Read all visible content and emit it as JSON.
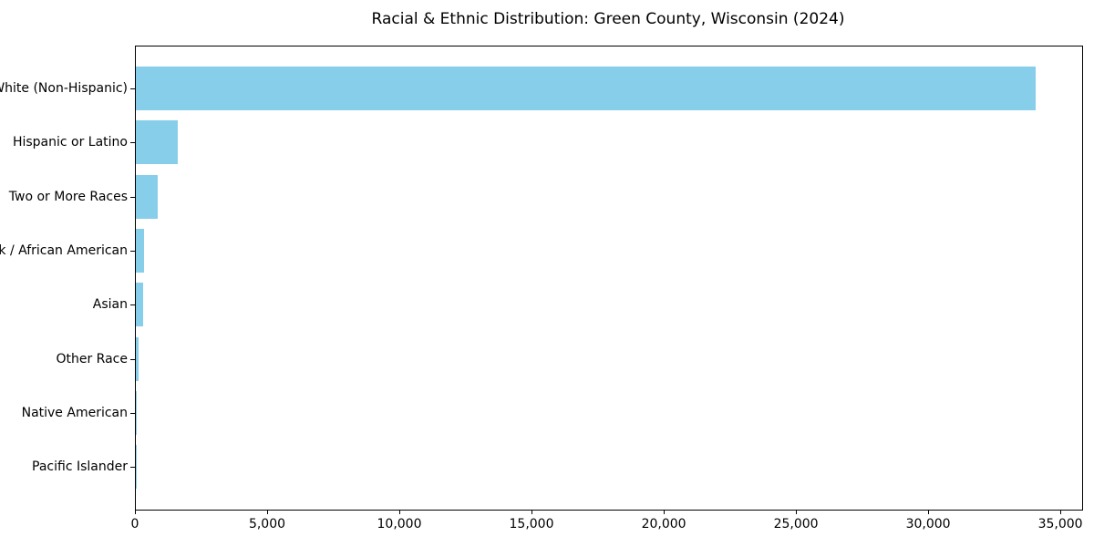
{
  "chart_data": {
    "type": "bar",
    "orientation": "horizontal",
    "title": "Racial & Ethnic Distribution: Green County, Wisconsin (2024)",
    "categories": [
      "White (Non-Hispanic)",
      "Hispanic or Latino",
      "Two or More Races",
      "Black / African American",
      "Asian",
      "Other Race",
      "Native American",
      "Pacific Islander"
    ],
    "values": [
      34030,
      1580,
      830,
      320,
      260,
      110,
      40,
      10
    ],
    "xlabel": "",
    "ylabel": "",
    "xlim": [
      0,
      35790
    ],
    "xticks": [
      0,
      5000,
      10000,
      15000,
      20000,
      25000,
      30000,
      35000
    ],
    "xtick_labels": [
      "0",
      "5,000",
      "10,000",
      "15,000",
      "20,000",
      "25,000",
      "30,000",
      "35,000"
    ],
    "bar_color": "#87CEEB",
    "axis_color": "#000000",
    "text_color": "#000000",
    "background": "#FFFFFF",
    "grid": false,
    "legend": false
  }
}
